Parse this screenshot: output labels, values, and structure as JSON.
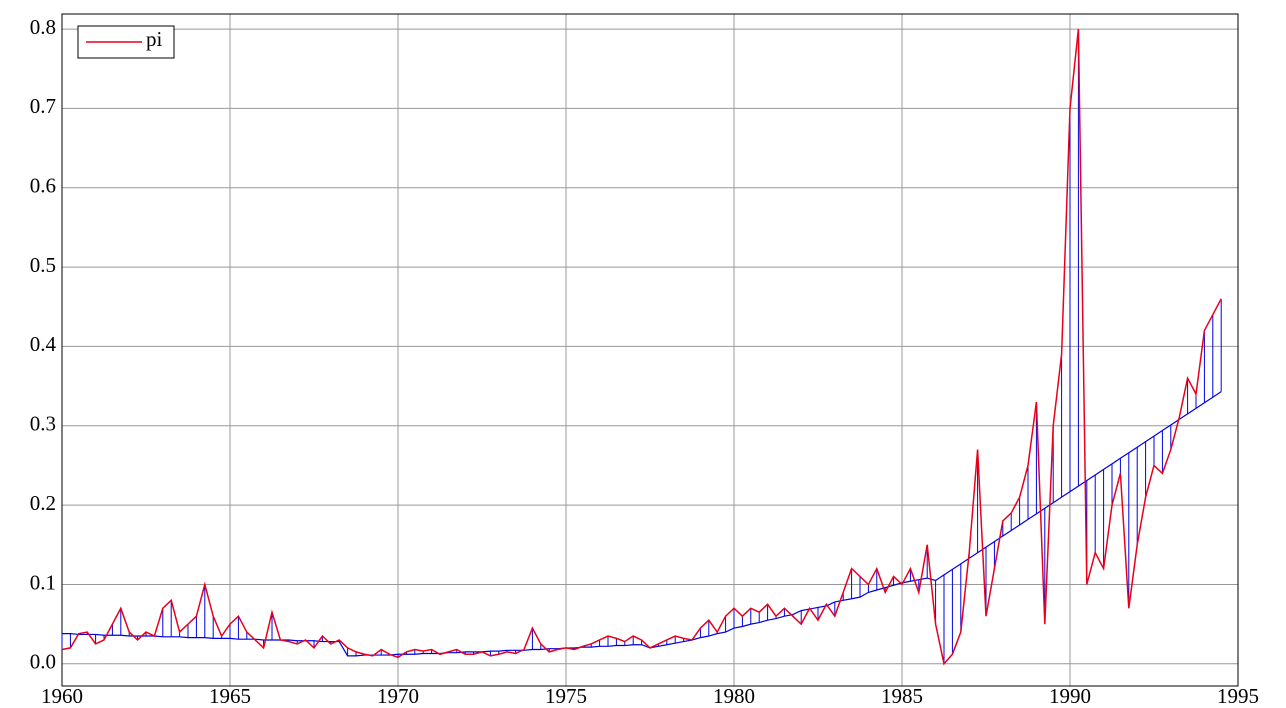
{
  "chart_data": {
    "type": "line",
    "x": [
      1960,
      1960.25,
      1960.5,
      1960.75,
      1961,
      1961.25,
      1961.5,
      1961.75,
      1962,
      1962.25,
      1962.5,
      1962.75,
      1963,
      1963.25,
      1963.5,
      1963.75,
      1964,
      1964.25,
      1964.5,
      1964.75,
      1965,
      1965.25,
      1965.5,
      1965.75,
      1966,
      1966.25,
      1966.5,
      1966.75,
      1967,
      1967.25,
      1967.5,
      1967.75,
      1968,
      1968.25,
      1968.5,
      1968.75,
      1969,
      1969.25,
      1969.5,
      1969.75,
      1970,
      1970.25,
      1970.5,
      1970.75,
      1971,
      1971.25,
      1971.5,
      1971.75,
      1972,
      1972.25,
      1972.5,
      1972.75,
      1973,
      1973.25,
      1973.5,
      1973.75,
      1974,
      1974.25,
      1974.5,
      1974.75,
      1975,
      1975.25,
      1975.5,
      1975.75,
      1976,
      1976.25,
      1976.5,
      1976.75,
      1977,
      1977.25,
      1977.5,
      1977.75,
      1978,
      1978.25,
      1978.5,
      1978.75,
      1979,
      1979.25,
      1979.5,
      1979.75,
      1980,
      1980.25,
      1980.5,
      1980.75,
      1981,
      1981.25,
      1981.5,
      1981.75,
      1982,
      1982.25,
      1982.5,
      1982.75,
      1983,
      1983.25,
      1983.5,
      1983.75,
      1984,
      1984.25,
      1984.5,
      1984.75,
      1985,
      1985.25,
      1985.5,
      1985.75,
      1986,
      1986.25,
      1986.5,
      1986.75,
      1987,
      1987.25,
      1987.5,
      1987.75,
      1988,
      1988.25,
      1988.5,
      1988.75,
      1989,
      1989.25,
      1989.5,
      1989.75,
      1990,
      1990.25,
      1990.5,
      1990.75,
      1991,
      1991.25,
      1991.5,
      1991.75,
      1992,
      1992.25,
      1992.5,
      1992.75,
      1993,
      1993.25,
      1993.5,
      1993.75,
      1994,
      1994.25,
      1994.5
    ],
    "series": [
      {
        "name": "pi",
        "color": "#e8001c",
        "values": [
          0.018,
          0.02,
          0.038,
          0.04,
          0.025,
          0.03,
          0.05,
          0.07,
          0.04,
          0.03,
          0.04,
          0.035,
          0.07,
          0.08,
          0.04,
          0.05,
          0.06,
          0.1,
          0.06,
          0.035,
          0.05,
          0.06,
          0.04,
          0.03,
          0.02,
          0.065,
          0.03,
          0.028,
          0.025,
          0.03,
          0.02,
          0.035,
          0.025,
          0.03,
          0.02,
          0.015,
          0.012,
          0.01,
          0.018,
          0.012,
          0.008,
          0.015,
          0.018,
          0.016,
          0.018,
          0.012,
          0.015,
          0.018,
          0.012,
          0.012,
          0.015,
          0.01,
          0.012,
          0.015,
          0.013,
          0.018,
          0.045,
          0.025,
          0.015,
          0.018,
          0.02,
          0.018,
          0.022,
          0.025,
          0.03,
          0.035,
          0.032,
          0.028,
          0.035,
          0.03,
          0.02,
          0.025,
          0.03,
          0.035,
          0.032,
          0.03,
          0.045,
          0.055,
          0.04,
          0.06,
          0.07,
          0.06,
          0.07,
          0.065,
          0.075,
          0.06,
          0.07,
          0.06,
          0.05,
          0.07,
          0.055,
          0.075,
          0.06,
          0.09,
          0.12,
          0.11,
          0.1,
          0.12,
          0.09,
          0.11,
          0.1,
          0.12,
          0.09,
          0.15,
          0.05,
          0.0,
          0.012,
          0.04,
          0.14,
          0.27,
          0.06,
          0.12,
          0.18,
          0.19,
          0.21,
          0.25,
          0.33,
          0.05,
          0.3,
          0.39,
          0.7,
          0.8,
          0.1,
          0.14,
          0.12,
          0.2,
          0.24,
          0.07,
          0.15,
          0.21,
          0.25,
          0.24,
          0.27,
          0.31,
          0.36,
          0.34,
          0.42,
          0.44,
          0.46
        ]
      }
    ],
    "fit": {
      "color": "#0000e0",
      "values": [
        0.038,
        0.038,
        0.037,
        0.037,
        0.037,
        0.036,
        0.036,
        0.036,
        0.035,
        0.035,
        0.035,
        0.035,
        0.034,
        0.034,
        0.034,
        0.033,
        0.033,
        0.033,
        0.032,
        0.032,
        0.032,
        0.031,
        0.031,
        0.031,
        0.03,
        0.03,
        0.03,
        0.03,
        0.029,
        0.029,
        0.029,
        0.028,
        0.028,
        0.028,
        0.01,
        0.01,
        0.011,
        0.011,
        0.011,
        0.011,
        0.012,
        0.012,
        0.012,
        0.013,
        0.013,
        0.013,
        0.014,
        0.014,
        0.015,
        0.015,
        0.015,
        0.016,
        0.016,
        0.017,
        0.017,
        0.017,
        0.018,
        0.018,
        0.019,
        0.019,
        0.02,
        0.02,
        0.021,
        0.021,
        0.022,
        0.022,
        0.023,
        0.023,
        0.024,
        0.024,
        0.02,
        0.022,
        0.024,
        0.026,
        0.028,
        0.03,
        0.033,
        0.035,
        0.038,
        0.04,
        0.045,
        0.047,
        0.05,
        0.052,
        0.055,
        0.057,
        0.06,
        0.062,
        0.067,
        0.069,
        0.071,
        0.073,
        0.078,
        0.08,
        0.082,
        0.084,
        0.09,
        0.093,
        0.096,
        0.099,
        0.102,
        0.104,
        0.106,
        0.108,
        0.105,
        0.112,
        0.119,
        0.126,
        0.133,
        0.14,
        0.147,
        0.154,
        0.161,
        0.168,
        0.175,
        0.182,
        0.189,
        0.196,
        0.203,
        0.21,
        0.217,
        0.224,
        0.231,
        0.238,
        0.245,
        0.252,
        0.259,
        0.266,
        0.273,
        0.28,
        0.287,
        0.294,
        0.301,
        0.308,
        0.315,
        0.322,
        0.329,
        0.336,
        0.343
      ]
    },
    "xlim": [
      1960,
      1995
    ],
    "xticks": [
      1960,
      1965,
      1970,
      1975,
      1980,
      1985,
      1990,
      1995
    ],
    "ylim": [
      -0.028,
      0.819
    ],
    "yticks": [
      {
        "value": 0,
        "label": "0.0"
      },
      0.1,
      0.2,
      0.3,
      0.4,
      0.5,
      0.6,
      0.7,
      0.8
    ],
    "grid": true,
    "legend": "top-left"
  }
}
